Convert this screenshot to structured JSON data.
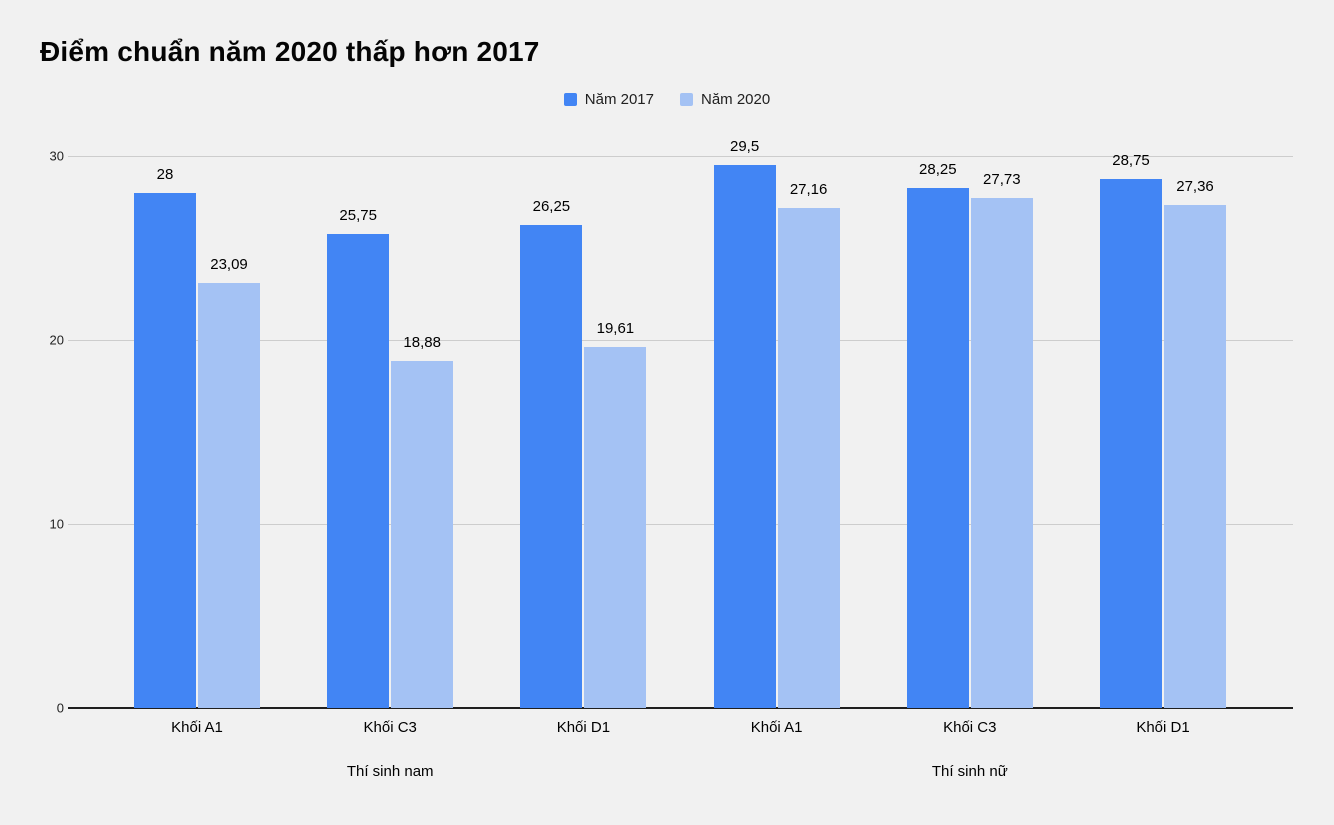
{
  "background_color": "#f1f1f1",
  "chart_data": {
    "type": "bar",
    "title": "Điểm chuẩn năm 2020 thấp hơn 2017",
    "categories": [
      "Khối A1",
      "Khối C3",
      "Khối D1",
      "Khối A1",
      "Khối C3",
      "Khối D1"
    ],
    "group_labels": [
      "Thí sinh nam",
      "Thí sinh nữ"
    ],
    "groups": [
      {
        "label": "Thí sinh nam",
        "category_indexes": [
          0,
          1,
          2
        ]
      },
      {
        "label": "Thí sinh nữ",
        "category_indexes": [
          3,
          4,
          5
        ]
      }
    ],
    "series": [
      {
        "name": "Năm 2017",
        "color": "#4285f4",
        "values": [
          28,
          25.75,
          26.25,
          29.5,
          28.25,
          28.75
        ],
        "labels": [
          "28",
          "25,75",
          "26,25",
          "29,5",
          "28,25",
          "28,75"
        ]
      },
      {
        "name": "Năm 2020",
        "color": "#a4c2f4",
        "values": [
          23.09,
          18.88,
          19.61,
          27.16,
          27.73,
          27.36
        ],
        "labels": [
          "23,09",
          "18,88",
          "19,61",
          "27,16",
          "27,73",
          "27,36"
        ]
      }
    ],
    "xlabel": "",
    "ylabel": "",
    "y_ticks": [
      0,
      10,
      20,
      30
    ],
    "ylim": [
      0,
      30
    ],
    "grid": true,
    "legend_position": "top",
    "axis_colors": {
      "gridline": "#cdcdcd",
      "baseline": "#1f1f1f",
      "tick_text": "#1f1f1f"
    }
  }
}
